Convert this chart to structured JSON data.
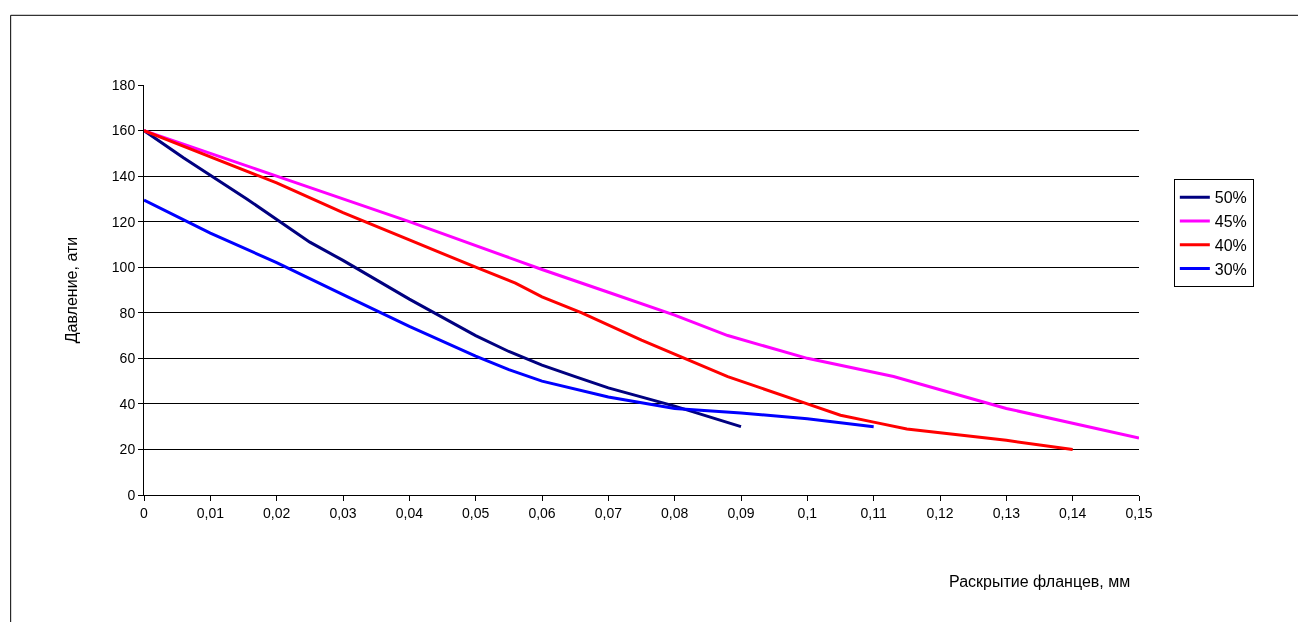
{
  "chart_data": {
    "type": "line",
    "xlabel": "Раскрытие фланцев, мм",
    "ylabel": "Давление, ати",
    "xlim": [
      0,
      0.15
    ],
    "ylim": [
      0,
      180
    ],
    "xticks": [
      0,
      {
        "value": 0.01,
        "label": "0,01"
      },
      {
        "value": 0.02,
        "label": "0,02"
      },
      {
        "value": 0.03,
        "label": "0,03"
      },
      {
        "value": 0.04,
        "label": "0,04"
      },
      {
        "value": 0.05,
        "label": "0,05"
      },
      {
        "value": 0.06,
        "label": "0,06"
      },
      {
        "value": 0.07,
        "label": "0,07"
      },
      {
        "value": 0.08,
        "label": "0,08"
      },
      {
        "value": 0.09,
        "label": "0,09"
      },
      {
        "value": 0.1,
        "label": "0,1"
      },
      {
        "value": 0.11,
        "label": "0,11"
      },
      {
        "value": 0.12,
        "label": "0,12"
      },
      {
        "value": 0.13,
        "label": "0,13"
      },
      {
        "value": 0.14,
        "label": "0,14"
      },
      {
        "value": 0.15,
        "label": "0,15"
      }
    ],
    "yticks": [
      0,
      20,
      40,
      60,
      80,
      100,
      120,
      140,
      160,
      180
    ],
    "grid": "y",
    "legend": "right",
    "marker": "none",
    "line_style": "solid",
    "series": [
      {
        "name": "50%",
        "color": "#000080",
        "x": [
          0,
          0.006,
          0.0155,
          0.025,
          0.03,
          0.04,
          0.05,
          0.055,
          0.06,
          0.065,
          0.07,
          0.08,
          0.09
        ],
        "values": [
          160,
          148,
          130,
          111,
          103,
          86,
          70,
          63,
          57,
          52,
          47,
          39,
          30
        ]
      },
      {
        "name": "45%",
        "color": "#ff00ff",
        "x": [
          0,
          0.02,
          0.04,
          0.06,
          0.07,
          0.08,
          0.088,
          0.1,
          0.113,
          0.13,
          0.15
        ],
        "values": [
          160,
          140,
          120,
          99,
          89,
          79,
          70,
          60,
          52,
          38,
          25
        ]
      },
      {
        "name": "40%",
        "color": "#ff0000",
        "x": [
          0,
          0.02,
          0.03,
          0.04,
          0.05,
          0.056,
          0.06,
          0.066,
          0.075,
          0.088,
          0.1,
          0.105,
          0.11,
          0.115,
          0.13,
          0.14
        ],
        "values": [
          160,
          137,
          124,
          112,
          100,
          93,
          87,
          80,
          68,
          52,
          40,
          35,
          32,
          29,
          24,
          20
        ]
      },
      {
        "name": "30%",
        "color": "#0000ff",
        "x": [
          0,
          0.01,
          0.02,
          0.03,
          0.04,
          0.05,
          0.055,
          0.06,
          0.07,
          0.08,
          0.09,
          0.1,
          0.11
        ],
        "values": [
          129.5,
          115,
          102,
          88,
          74,
          61,
          55,
          50,
          43,
          38,
          36,
          33.5,
          30
        ]
      }
    ]
  }
}
